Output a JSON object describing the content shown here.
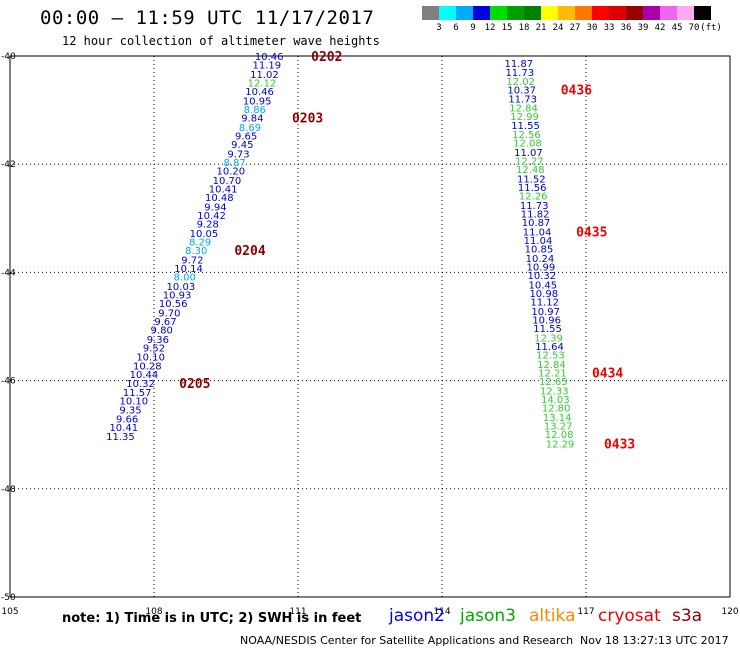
{
  "header": {
    "title": "00:00 – 11:59 UTC 11/17/2017",
    "subtitle": "12 hour collection of altimeter wave heights"
  },
  "colorbar": {
    "swatches": [
      "#808080",
      "#00ffff",
      "#00aaff",
      "#0000dd",
      "#00dd00",
      "#00a000",
      "#008000",
      "#ffff00",
      "#ffbb00",
      "#ff7700",
      "#ff0000",
      "#dd0000",
      "#990000",
      "#aa00aa",
      "#ee66ee",
      "#ffaaee",
      "#000000"
    ],
    "labels": [
      "3",
      "6",
      "9",
      "12",
      "15",
      "18",
      "21",
      "24",
      "27",
      "30",
      "33",
      "36",
      "39",
      "42",
      "45",
      "70",
      "(ft)"
    ]
  },
  "map": {
    "lon_ticks": [
      "105",
      "108",
      "111",
      "114",
      "117",
      "120"
    ],
    "lat_ticks": [
      "-40",
      "-42",
      "-44",
      "-46",
      "-48",
      "-50"
    ],
    "lon_range": [
      105,
      120
    ],
    "lat_range": [
      -40,
      -50
    ],
    "grid": true
  },
  "tracks": [
    {
      "satellite": "jason2",
      "points": [
        {
          "v": "10.46",
          "c": "#0000cc",
          "lon": 110.4,
          "lat": -40.0
        },
        {
          "v": "11.19",
          "c": "#0000cc",
          "lon": 110.35,
          "lat": -40.16
        },
        {
          "v": "11.02",
          "c": "#0000cc",
          "lon": 110.3,
          "lat": -40.33
        },
        {
          "v": "12.12",
          "c": "#33cc33",
          "lon": 110.25,
          "lat": -40.49
        },
        {
          "v": "10.46",
          "c": "#0000cc",
          "lon": 110.2,
          "lat": -40.65
        },
        {
          "v": "10.95",
          "c": "#0000cc",
          "lon": 110.15,
          "lat": -40.82
        },
        {
          "v": "8.86",
          "c": "#00aaee",
          "lon": 110.1,
          "lat": -40.98
        },
        {
          "v": "9.84",
          "c": "#0000cc",
          "lon": 110.05,
          "lat": -41.14
        },
        {
          "v": "8.69",
          "c": "#00aaee",
          "lon": 110.0,
          "lat": -41.31
        },
        {
          "v": "9.65",
          "c": "#0000cc",
          "lon": 109.92,
          "lat": -41.47
        },
        {
          "v": "9.45",
          "c": "#0000cc",
          "lon": 109.84,
          "lat": -41.63
        },
        {
          "v": "9.73",
          "c": "#0000cc",
          "lon": 109.76,
          "lat": -41.8
        },
        {
          "v": "8.87",
          "c": "#00aaee",
          "lon": 109.68,
          "lat": -41.96
        },
        {
          "v": "10.20",
          "c": "#0000cc",
          "lon": 109.6,
          "lat": -42.12
        },
        {
          "v": "10.70",
          "c": "#0000cc",
          "lon": 109.52,
          "lat": -42.29
        },
        {
          "v": "10.41",
          "c": "#0000cc",
          "lon": 109.44,
          "lat": -42.45
        },
        {
          "v": "10.48",
          "c": "#0000cc",
          "lon": 109.36,
          "lat": -42.61
        },
        {
          "v": "9.94",
          "c": "#0000cc",
          "lon": 109.28,
          "lat": -42.78
        },
        {
          "v": "10.42",
          "c": "#0000cc",
          "lon": 109.2,
          "lat": -42.94
        },
        {
          "v": "9.28",
          "c": "#0000cc",
          "lon": 109.12,
          "lat": -43.1
        },
        {
          "v": "10.05",
          "c": "#0000cc",
          "lon": 109.04,
          "lat": -43.27
        },
        {
          "v": "8.29",
          "c": "#00aaee",
          "lon": 108.96,
          "lat": -43.43
        },
        {
          "v": "8.30",
          "c": "#00aaee",
          "lon": 108.88,
          "lat": -43.59
        },
        {
          "v": "9.72",
          "c": "#0000cc",
          "lon": 108.8,
          "lat": -43.76
        },
        {
          "v": "10.14",
          "c": "#0000cc",
          "lon": 108.72,
          "lat": -43.92
        },
        {
          "v": "8.00",
          "c": "#00aaee",
          "lon": 108.64,
          "lat": -44.08
        },
        {
          "v": "10.03",
          "c": "#0000cc",
          "lon": 108.56,
          "lat": -44.25
        },
        {
          "v": "10.93",
          "c": "#0000cc",
          "lon": 108.48,
          "lat": -44.41
        },
        {
          "v": "10.56",
          "c": "#0000cc",
          "lon": 108.4,
          "lat": -44.57
        },
        {
          "v": "9.70",
          "c": "#0000cc",
          "lon": 108.32,
          "lat": -44.74
        },
        {
          "v": "9.67",
          "c": "#0000cc",
          "lon": 108.24,
          "lat": -44.9
        },
        {
          "v": "9.80",
          "c": "#0000cc",
          "lon": 108.16,
          "lat": -45.06
        },
        {
          "v": "9.36",
          "c": "#0000cc",
          "lon": 108.08,
          "lat": -45.23
        },
        {
          "v": "9.52",
          "c": "#0000cc",
          "lon": 108.0,
          "lat": -45.39
        },
        {
          "v": "10.10",
          "c": "#0000cc",
          "lon": 107.93,
          "lat": -45.55
        },
        {
          "v": "10.28",
          "c": "#0000cc",
          "lon": 107.86,
          "lat": -45.72
        },
        {
          "v": "10.44",
          "c": "#0000cc",
          "lon": 107.79,
          "lat": -45.88
        },
        {
          "v": "10.32",
          "c": "#0000cc",
          "lon": 107.72,
          "lat": -46.04
        },
        {
          "v": "11.57",
          "c": "#0000cc",
          "lon": 107.65,
          "lat": -46.21
        },
        {
          "v": "10.10",
          "c": "#0000cc",
          "lon": 107.58,
          "lat": -46.37
        },
        {
          "v": "9.35",
          "c": "#0000cc",
          "lon": 107.51,
          "lat": -46.53
        },
        {
          "v": "9.66",
          "c": "#0000cc",
          "lon": 107.44,
          "lat": -46.7
        },
        {
          "v": "10.41",
          "c": "#0000cc",
          "lon": 107.37,
          "lat": -46.86
        },
        {
          "v": "11.35",
          "c": "#0000cc",
          "lon": 107.3,
          "lat": -47.02
        }
      ],
      "times": [
        {
          "t": "0202",
          "c": "#8b0000",
          "lon": 111.6,
          "lat": -40.0
        },
        {
          "t": "0203",
          "c": "#8b0000",
          "lon": 111.2,
          "lat": -41.14
        },
        {
          "t": "0204",
          "c": "#8b0000",
          "lon": 110.0,
          "lat": -43.59
        },
        {
          "t": "0205",
          "c": "#8b0000",
          "lon": 108.85,
          "lat": -46.04
        }
      ]
    },
    {
      "satellite": "jason3",
      "points": [
        {
          "v": "11.87",
          "c": "#0000cc",
          "lon": 115.6,
          "lat": -40.13
        },
        {
          "v": "11.73",
          "c": "#0000cc",
          "lon": 115.62,
          "lat": -40.3
        },
        {
          "v": "12.02",
          "c": "#33cc33",
          "lon": 115.64,
          "lat": -40.46
        },
        {
          "v": "10.37",
          "c": "#0000cc",
          "lon": 115.66,
          "lat": -40.62
        },
        {
          "v": "11.73",
          "c": "#0000cc",
          "lon": 115.68,
          "lat": -40.79
        },
        {
          "v": "12.84",
          "c": "#33cc33",
          "lon": 115.7,
          "lat": -40.95
        },
        {
          "v": "12.99",
          "c": "#33cc33",
          "lon": 115.72,
          "lat": -41.11
        },
        {
          "v": "11.55",
          "c": "#0000cc",
          "lon": 115.74,
          "lat": -41.28
        },
        {
          "v": "12.56",
          "c": "#33cc33",
          "lon": 115.76,
          "lat": -41.44
        },
        {
          "v": "12.08",
          "c": "#33cc33",
          "lon": 115.78,
          "lat": -41.6
        },
        {
          "v": "11.07",
          "c": "#0000cc",
          "lon": 115.8,
          "lat": -41.77
        },
        {
          "v": "12.27",
          "c": "#33cc33",
          "lon": 115.82,
          "lat": -41.93
        },
        {
          "v": "12.48",
          "c": "#33cc33",
          "lon": 115.84,
          "lat": -42.09
        },
        {
          "v": "11.52",
          "c": "#0000cc",
          "lon": 115.86,
          "lat": -42.26
        },
        {
          "v": "11.56",
          "c": "#0000cc",
          "lon": 115.88,
          "lat": -42.42
        },
        {
          "v": "12.26",
          "c": "#33cc33",
          "lon": 115.9,
          "lat": -42.58
        },
        {
          "v": "11.73",
          "c": "#0000cc",
          "lon": 115.92,
          "lat": -42.75
        },
        {
          "v": "11.82",
          "c": "#0000cc",
          "lon": 115.94,
          "lat": -42.91
        },
        {
          "v": "10.87",
          "c": "#0000cc",
          "lon": 115.96,
          "lat": -43.07
        },
        {
          "v": "11.04",
          "c": "#0000cc",
          "lon": 115.98,
          "lat": -43.24
        },
        {
          "v": "11.04",
          "c": "#0000cc",
          "lon": 116.0,
          "lat": -43.4
        },
        {
          "v": "10.85",
          "c": "#0000cc",
          "lon": 116.02,
          "lat": -43.56
        },
        {
          "v": "10.24",
          "c": "#0000cc",
          "lon": 116.04,
          "lat": -43.73
        },
        {
          "v": "10.99",
          "c": "#0000cc",
          "lon": 116.06,
          "lat": -43.89
        },
        {
          "v": "10.32",
          "c": "#0000cc",
          "lon": 116.08,
          "lat": -44.05
        },
        {
          "v": "10.45",
          "c": "#0000cc",
          "lon": 116.1,
          "lat": -44.22
        },
        {
          "v": "10.98",
          "c": "#0000cc",
          "lon": 116.12,
          "lat": -44.38
        },
        {
          "v": "11.12",
          "c": "#0000cc",
          "lon": 116.14,
          "lat": -44.54
        },
        {
          "v": "10.97",
          "c": "#0000cc",
          "lon": 116.16,
          "lat": -44.71
        },
        {
          "v": "10.96",
          "c": "#0000cc",
          "lon": 116.18,
          "lat": -44.87
        },
        {
          "v": "11.55",
          "c": "#0000cc",
          "lon": 116.2,
          "lat": -45.03
        },
        {
          "v": "12.39",
          "c": "#33cc33",
          "lon": 116.22,
          "lat": -45.2
        },
        {
          "v": "11.64",
          "c": "#0000cc",
          "lon": 116.24,
          "lat": -45.36
        },
        {
          "v": "12.53",
          "c": "#33cc33",
          "lon": 116.26,
          "lat": -45.52
        },
        {
          "v": "12.84",
          "c": "#33cc33",
          "lon": 116.28,
          "lat": -45.69
        },
        {
          "v": "12.21",
          "c": "#33cc33",
          "lon": 116.3,
          "lat": -45.85
        },
        {
          "v": "12.65",
          "c": "#33cc33",
          "lon": 116.32,
          "lat": -46.01
        },
        {
          "v": "12.33",
          "c": "#33cc33",
          "lon": 116.34,
          "lat": -46.18
        },
        {
          "v": "14.03",
          "c": "#33cc33",
          "lon": 116.36,
          "lat": -46.34
        },
        {
          "v": "12.80",
          "c": "#33cc33",
          "lon": 116.38,
          "lat": -46.5
        },
        {
          "v": "13.14",
          "c": "#33cc33",
          "lon": 116.4,
          "lat": -46.67
        },
        {
          "v": "13.27",
          "c": "#33cc33",
          "lon": 116.42,
          "lat": -46.83
        },
        {
          "v": "12.08",
          "c": "#33cc33",
          "lon": 116.44,
          "lat": -46.99
        },
        {
          "v": "12.29",
          "c": "#33cc33",
          "lon": 116.46,
          "lat": -47.16
        }
      ],
      "times": [
        {
          "t": "0436",
          "c": "#ee0000",
          "lon": 116.8,
          "lat": -40.62
        },
        {
          "t": "0435",
          "c": "#ee0000",
          "lon": 117.12,
          "lat": -43.24
        },
        {
          "t": "0434",
          "c": "#ee0000",
          "lon": 117.45,
          "lat": -45.85
        },
        {
          "t": "0433",
          "c": "#ee0000",
          "lon": 117.7,
          "lat": -47.16
        }
      ]
    }
  ],
  "footer": {
    "note": "note: 1) Time is in UTC; 2) SWH is in feet",
    "legend": [
      {
        "name": "jason2",
        "color": "#0000ee"
      },
      {
        "name": "jason3",
        "color": "#00aa00"
      },
      {
        "name": "altika",
        "color": "#ff8800"
      },
      {
        "name": "cryosat",
        "color": "#ee0000"
      },
      {
        "name": "s3a",
        "color": "#8b0000"
      }
    ],
    "credit": "NOAA/NESDIS Center for Satellite Applications and Research",
    "stamp": "Nov 18 13:27:13 UTC 2017"
  }
}
